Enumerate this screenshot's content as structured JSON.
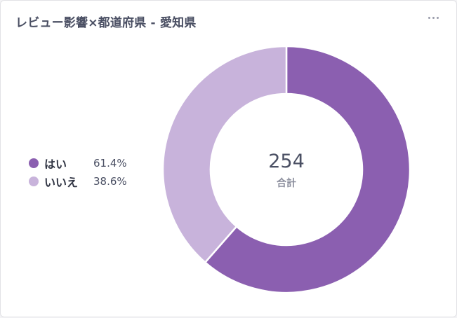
{
  "header": {
    "title": "レビュー影響×都道府県 - 愛知県",
    "menu_icon": "more-horizontal-icon"
  },
  "chart_data": {
    "type": "pie",
    "donut": true,
    "total": 254,
    "total_label": "合計",
    "legend_position": "left",
    "slices": [
      {
        "label": "はい",
        "value": 156,
        "percent": "61.4%",
        "color": "#8b5fb0"
      },
      {
        "label": "いいえ",
        "value": 98,
        "percent": "38.6%",
        "color": "#c8b3db"
      }
    ]
  }
}
